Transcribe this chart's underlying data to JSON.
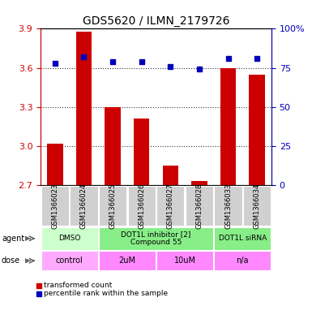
{
  "title": "GDS5620 / ILMN_2179726",
  "samples": [
    "GSM1366023",
    "GSM1366024",
    "GSM1366025",
    "GSM1366026",
    "GSM1366027",
    "GSM1366028",
    "GSM1366033",
    "GSM1366034"
  ],
  "bar_values": [
    3.02,
    3.88,
    3.3,
    3.21,
    2.85,
    2.73,
    3.6,
    3.55
  ],
  "percentile_values": [
    78,
    82,
    79,
    79,
    76,
    74,
    81,
    81
  ],
  "y_min": 2.7,
  "y_max": 3.9,
  "y_ticks": [
    2.7,
    3.0,
    3.3,
    3.6,
    3.9
  ],
  "y2_ticks": [
    0,
    25,
    50,
    75,
    100
  ],
  "bar_color": "#cc0000",
  "dot_color": "#0000bb",
  "agent_groups": [
    {
      "label": "DMSO",
      "start": 0,
      "end": 2,
      "color": "#ccffcc"
    },
    {
      "label": "DOT1L inhibitor [2]\nCompound 55",
      "start": 2,
      "end": 6,
      "color": "#88ee88"
    },
    {
      "label": "DOT1L siRNA",
      "start": 6,
      "end": 8,
      "color": "#88ee88"
    }
  ],
  "dose_groups": [
    {
      "label": "control",
      "start": 0,
      "end": 2,
      "color": "#ffaaff"
    },
    {
      "label": "2uM",
      "start": 2,
      "end": 4,
      "color": "#ff88ff"
    },
    {
      "label": "10uM",
      "start": 4,
      "end": 6,
      "color": "#ff88ff"
    },
    {
      "label": "n/a",
      "start": 6,
      "end": 8,
      "color": "#ff88ff"
    }
  ],
  "legend_bar_label": "transformed count",
  "legend_dot_label": "percentile rank within the sample",
  "tick_color_left": "#cc0000",
  "tick_color_right": "#0000bb",
  "grid_color": "#333333"
}
